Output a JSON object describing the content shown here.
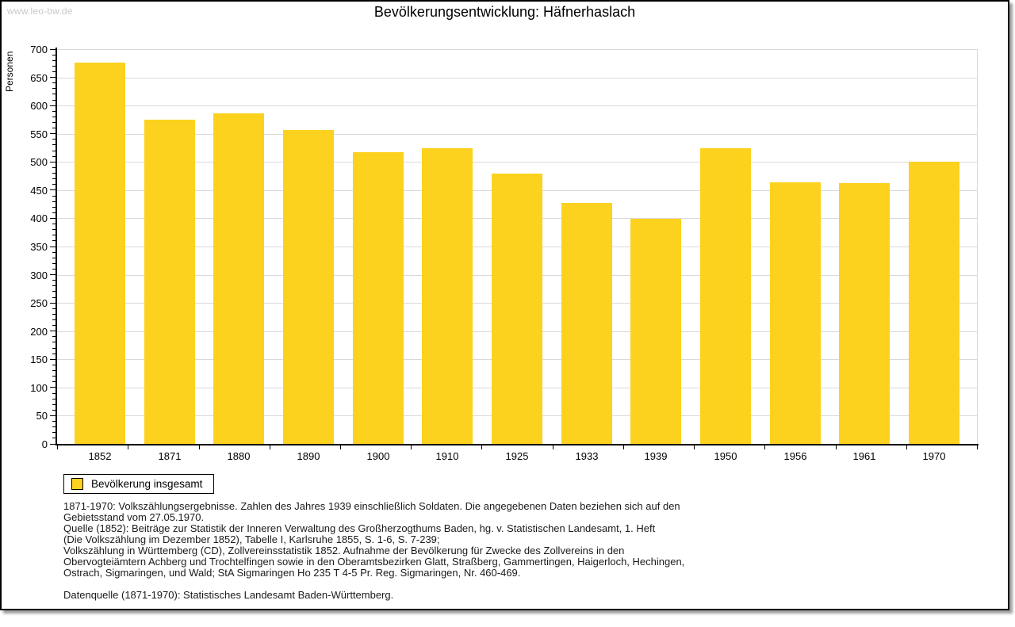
{
  "page": {
    "watermark": "www.leo-bw.de",
    "title": "Bevölkerungsentwicklung: Häfnerhaslach"
  },
  "chart_data": {
    "type": "bar",
    "title": "Bevölkerungsentwicklung: Häfnerhaslach",
    "xlabel": "",
    "ylabel": "Personen",
    "categories": [
      "1852",
      "1871",
      "1880",
      "1890",
      "1900",
      "1910",
      "1925",
      "1933",
      "1939",
      "1950",
      "1956",
      "1961",
      "1970"
    ],
    "series": [
      {
        "name": "Bevölkerung insgesamt",
        "color": "#FCD21E",
        "values": [
          676,
          575,
          586,
          557,
          517,
          525,
          479,
          427,
          399,
          525,
          464,
          463,
          501
        ]
      }
    ],
    "ylim": [
      0,
      700
    ],
    "ytick_step": 50,
    "yminor_step": 10,
    "grid": true,
    "gridline_color": "#D9D9D9",
    "legend_position": "bottom-left"
  },
  "footnotes": {
    "lines": [
      "1871-1970: Volkszählungsergebnisse. Zahlen des Jahres 1939 einschließlich Soldaten. Die angegebenen Daten beziehen sich auf den",
      "Gebietsstand vom 27.05.1970.",
      "Quelle (1852): Beiträge zur Statistik der Inneren Verwaltung des Großherzogthums Baden, hg. v. Statistischen Landesamt, 1. Heft",
      "(Die Volkszählung im Dezember 1852), Tabelle I, Karlsruhe 1855, S. 1-6, S. 7-239;",
      "Volkszählung in Württemberg (CD), Zollvereinsstatistik 1852. Aufnahme der Bevölkerung für Zwecke des Zollvereins in den",
      "Obervogteiämtern Achberg und Trochtelfingen sowie in den Oberamtsbezirken Glatt, Straßberg, Gammertingen, Haigerloch, Hechingen,",
      "Ostrach, Sigmaringen, und Wald; StA Sigmaringen Ho 235 T 4-5 Pr. Reg. Sigmaringen, Nr. 460-469.",
      "",
      "Datenquelle (1871-1970): Statistisches Landesamt Baden-Württemberg."
    ]
  }
}
